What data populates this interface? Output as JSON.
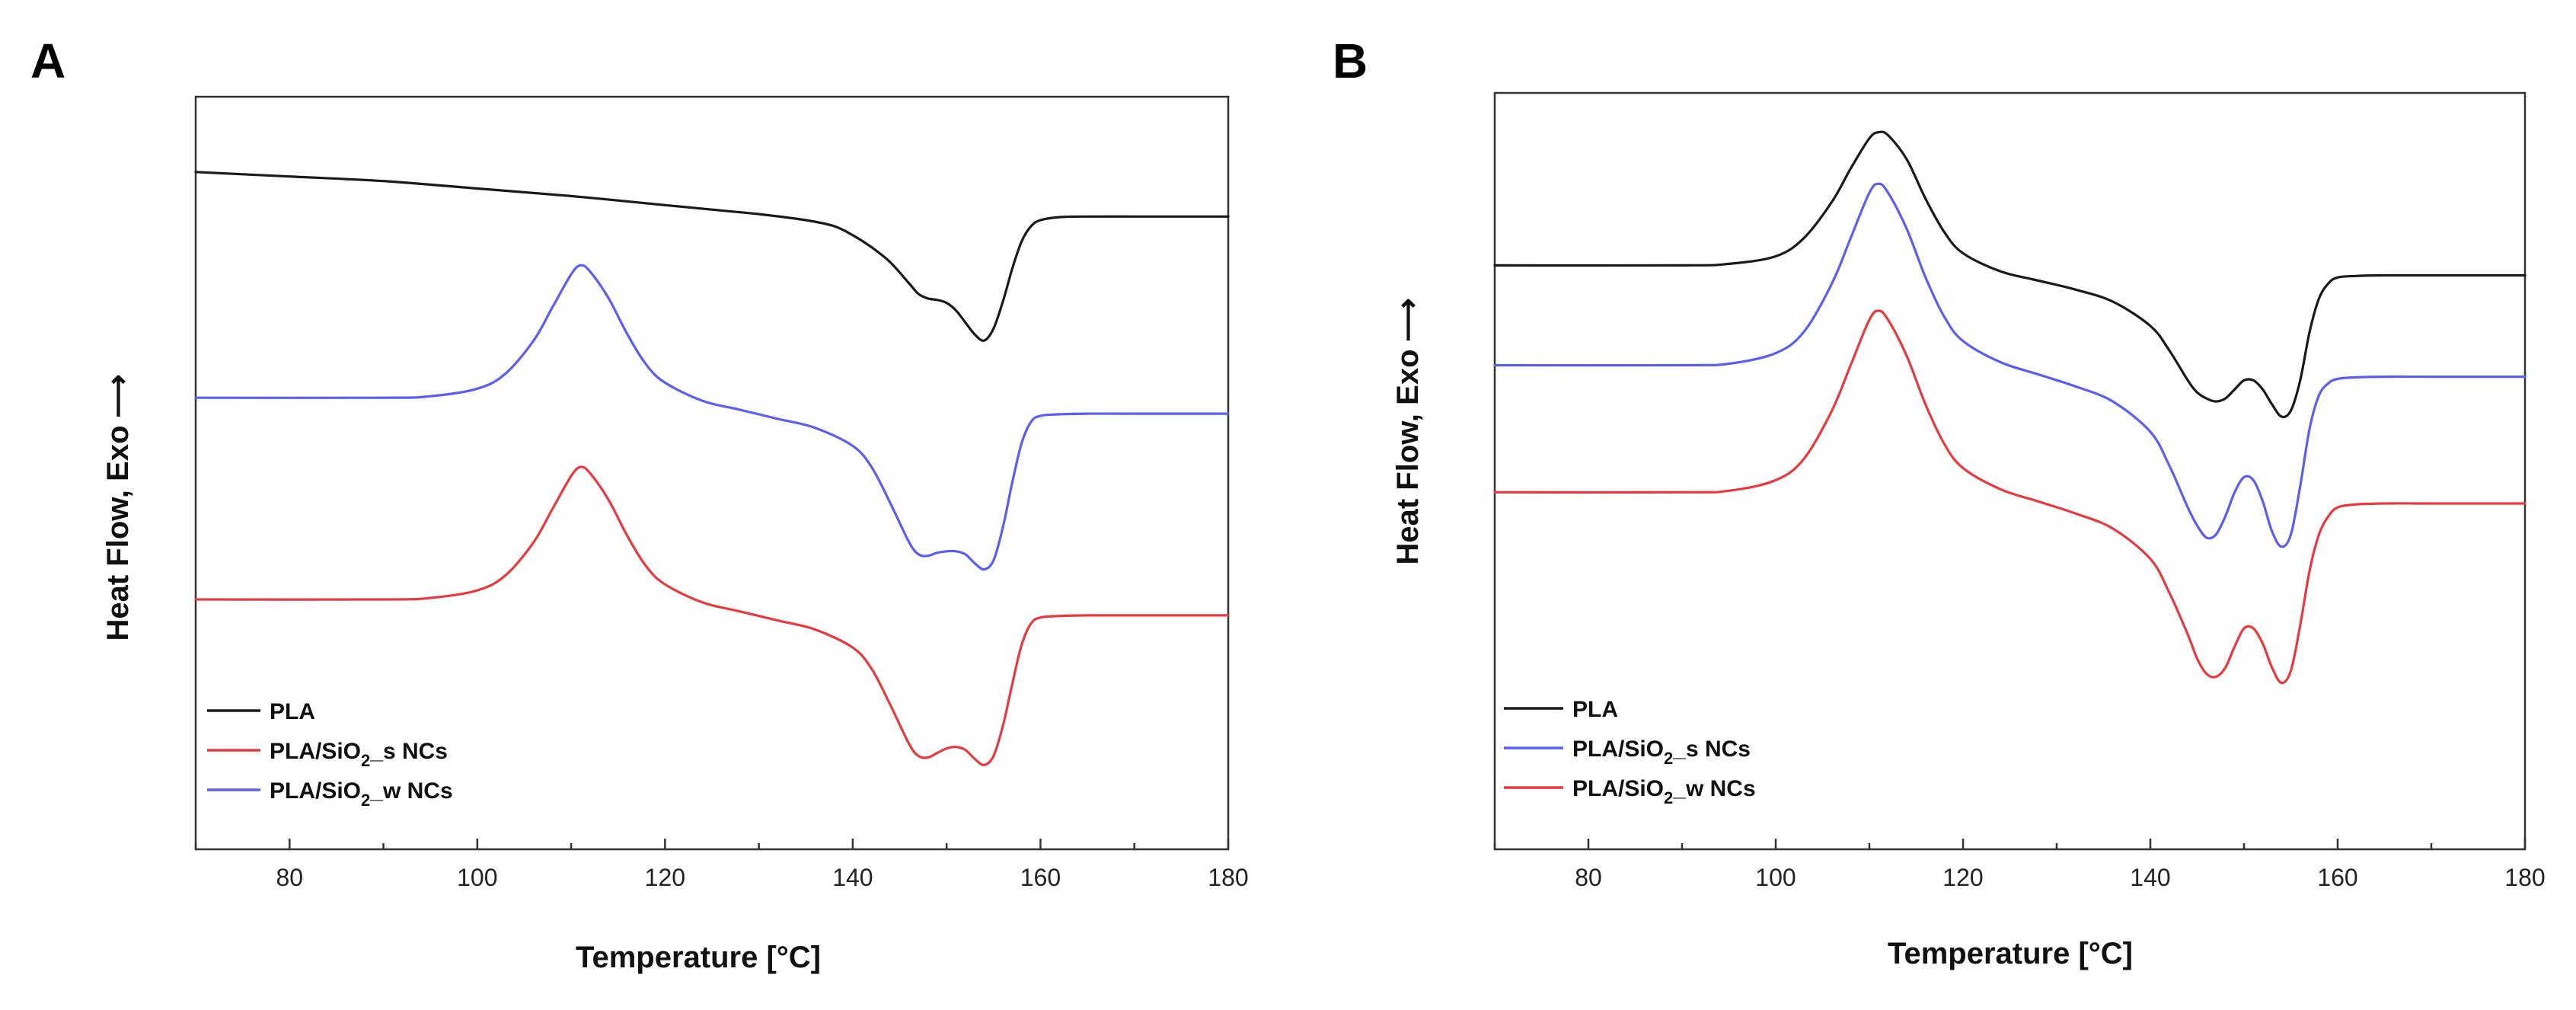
{
  "chart_data": [
    {
      "type": "line",
      "panel_label": "A",
      "xlabel": "Temperature [°C]",
      "ylabel": "Heat Flow, Exo",
      "ylabel_arrow": "⟶",
      "xlim": [
        70,
        180
      ],
      "xticks": [
        80,
        100,
        120,
        140,
        160,
        180
      ],
      "yticks_shown": false,
      "legend_position": "bottom-left",
      "legend": [
        {
          "main": "PLA",
          "sub": "",
          "rest": "",
          "color": "#1a1a1a"
        },
        {
          "main": "PLA/SiO",
          "sub": "2",
          "rest": "_s NCs",
          "color": "#e8393f"
        },
        {
          "main": "PLA/SiO",
          "sub": "2",
          "rest": "_w NCs",
          "color": "#5b5ef0"
        }
      ],
      "series": [
        {
          "name": "PLA",
          "color": "#1a1a1a",
          "x": [
            70,
            80,
            90,
            100,
            110,
            120,
            125,
            130,
            135,
            138,
            140,
            142,
            144,
            146,
            147,
            148,
            149,
            150,
            151,
            152,
            153,
            154,
            155,
            156,
            157,
            158,
            159,
            160,
            162,
            165,
            170,
            175,
            180
          ],
          "y": [
            1.2,
            1.185,
            1.17,
            1.145,
            1.12,
            1.09,
            1.075,
            1.06,
            1.04,
            1.02,
            0.99,
            0.95,
            0.9,
            0.83,
            0.795,
            0.78,
            0.775,
            0.765,
            0.74,
            0.7,
            0.66,
            0.64,
            0.68,
            0.77,
            0.88,
            0.97,
            1.02,
            1.04,
            1.05,
            1.052,
            1.052,
            1.052,
            1.052
          ]
        },
        {
          "name": "PLA/SiO2_w NCs",
          "color": "#5b5ef0",
          "x": [
            70,
            90,
            95,
            100,
            103,
            106,
            108,
            110,
            111,
            112,
            114,
            116,
            118,
            120,
            124,
            128,
            132,
            136,
            140,
            142,
            144,
            146,
            147,
            148,
            149,
            150,
            151,
            152,
            153,
            154,
            155,
            156,
            157,
            158,
            159,
            160,
            162,
            165,
            170,
            180
          ],
          "y": [
            0.45,
            0.45,
            0.455,
            0.48,
            0.53,
            0.64,
            0.75,
            0.86,
            0.89,
            0.87,
            0.78,
            0.66,
            0.56,
            0.5,
            0.44,
            0.41,
            0.38,
            0.35,
            0.29,
            0.22,
            0.1,
            -0.03,
            -0.07,
            -0.075,
            -0.065,
            -0.06,
            -0.06,
            -0.07,
            -0.1,
            -0.12,
            -0.09,
            0.02,
            0.17,
            0.3,
            0.37,
            0.39,
            0.395,
            0.397,
            0.397,
            0.397
          ]
        },
        {
          "name": "PLA/SiO2_s NCs",
          "color": "#e8393f",
          "x": [
            70,
            90,
            95,
            100,
            103,
            106,
            108,
            110,
            111,
            112,
            114,
            116,
            118,
            120,
            124,
            128,
            132,
            136,
            140,
            142,
            144,
            146,
            147,
            148,
            149,
            150,
            151,
            152,
            153,
            154,
            155,
            156,
            157,
            158,
            159,
            160,
            162,
            165,
            170,
            180
          ],
          "y": [
            -0.22,
            -0.22,
            -0.215,
            -0.19,
            -0.14,
            -0.03,
            0.08,
            0.19,
            0.22,
            0.2,
            0.11,
            -0.01,
            -0.11,
            -0.17,
            -0.23,
            -0.26,
            -0.29,
            -0.32,
            -0.38,
            -0.45,
            -0.57,
            -0.7,
            -0.74,
            -0.745,
            -0.73,
            -0.715,
            -0.71,
            -0.72,
            -0.75,
            -0.77,
            -0.74,
            -0.64,
            -0.5,
            -0.37,
            -0.3,
            -0.28,
            -0.275,
            -0.273,
            -0.273,
            -0.273
          ]
        }
      ]
    },
    {
      "type": "line",
      "panel_label": "B",
      "xlabel": "Temperature [°C]",
      "ylabel": "Heat Flow, Exo",
      "ylabel_arrow": "⟶",
      "xlim": [
        70,
        180
      ],
      "xticks": [
        80,
        100,
        120,
        140,
        160,
        180
      ],
      "yticks_shown": false,
      "legend_position": "bottom-left",
      "legend": [
        {
          "main": "PLA",
          "sub": "",
          "rest": "",
          "color": "#1a1a1a"
        },
        {
          "main": "PLA/SiO",
          "sub": "2",
          "rest": "_s NCs",
          "color": "#5b5ef0"
        },
        {
          "main": "PLA/SiO",
          "sub": "2",
          "rest": "_w NCs",
          "color": "#e8393f"
        }
      ],
      "series": [
        {
          "name": "PLA",
          "color": "#1a1a1a",
          "x": [
            70,
            90,
            95,
            100,
            103,
            106,
            108,
            110,
            111,
            112,
            114,
            116,
            118,
            120,
            124,
            128,
            132,
            136,
            140,
            142,
            144,
            145,
            146,
            147,
            148,
            149,
            150,
            151,
            152,
            153,
            154,
            155,
            156,
            157,
            158,
            159,
            160,
            162,
            165,
            170,
            180
          ],
          "y": [
            0.88,
            0.88,
            0.885,
            0.91,
            0.97,
            1.09,
            1.2,
            1.3,
            1.32,
            1.31,
            1.23,
            1.1,
            0.99,
            0.92,
            0.86,
            0.83,
            0.8,
            0.76,
            0.68,
            0.6,
            0.5,
            0.46,
            0.44,
            0.43,
            0.44,
            0.47,
            0.5,
            0.5,
            0.47,
            0.42,
            0.38,
            0.4,
            0.5,
            0.66,
            0.77,
            0.82,
            0.84,
            0.845,
            0.847,
            0.847,
            0.847
          ]
        },
        {
          "name": "PLA/SiO2_s NCs",
          "color": "#5b5ef0",
          "x": [
            70,
            90,
            95,
            100,
            103,
            106,
            108,
            110,
            111,
            112,
            114,
            116,
            118,
            120,
            124,
            128,
            132,
            136,
            140,
            142,
            144,
            145,
            146,
            147,
            148,
            149,
            150,
            151,
            152,
            153,
            154,
            155,
            156,
            157,
            158,
            159,
            160,
            162,
            165,
            170,
            180
          ],
          "y": [
            0.55,
            0.55,
            0.555,
            0.59,
            0.66,
            0.82,
            0.97,
            1.12,
            1.15,
            1.12,
            1.0,
            0.84,
            0.71,
            0.63,
            0.56,
            0.52,
            0.48,
            0.43,
            0.33,
            0.22,
            0.08,
            0.02,
            -0.02,
            -0.01,
            0.05,
            0.13,
            0.18,
            0.17,
            0.1,
            0.0,
            -0.05,
            -0.01,
            0.15,
            0.34,
            0.45,
            0.49,
            0.505,
            0.51,
            0.512,
            0.512,
            0.512
          ]
        },
        {
          "name": "PLA/SiO2_w NCs",
          "color": "#e8393f",
          "x": [
            70,
            90,
            95,
            100,
            103,
            106,
            108,
            110,
            111,
            112,
            114,
            116,
            118,
            120,
            124,
            128,
            132,
            136,
            140,
            142,
            144,
            145,
            146,
            147,
            148,
            149,
            150,
            151,
            152,
            153,
            154,
            155,
            156,
            157,
            158,
            159,
            160,
            162,
            165,
            170,
            180
          ],
          "y": [
            0.13,
            0.13,
            0.135,
            0.17,
            0.24,
            0.4,
            0.55,
            0.7,
            0.73,
            0.7,
            0.58,
            0.42,
            0.29,
            0.21,
            0.14,
            0.1,
            0.06,
            0.01,
            -0.09,
            -0.2,
            -0.34,
            -0.42,
            -0.47,
            -0.48,
            -0.45,
            -0.38,
            -0.32,
            -0.32,
            -0.37,
            -0.45,
            -0.5,
            -0.46,
            -0.31,
            -0.13,
            -0.01,
            0.05,
            0.08,
            0.09,
            0.093,
            0.093,
            0.093
          ]
        }
      ]
    }
  ]
}
